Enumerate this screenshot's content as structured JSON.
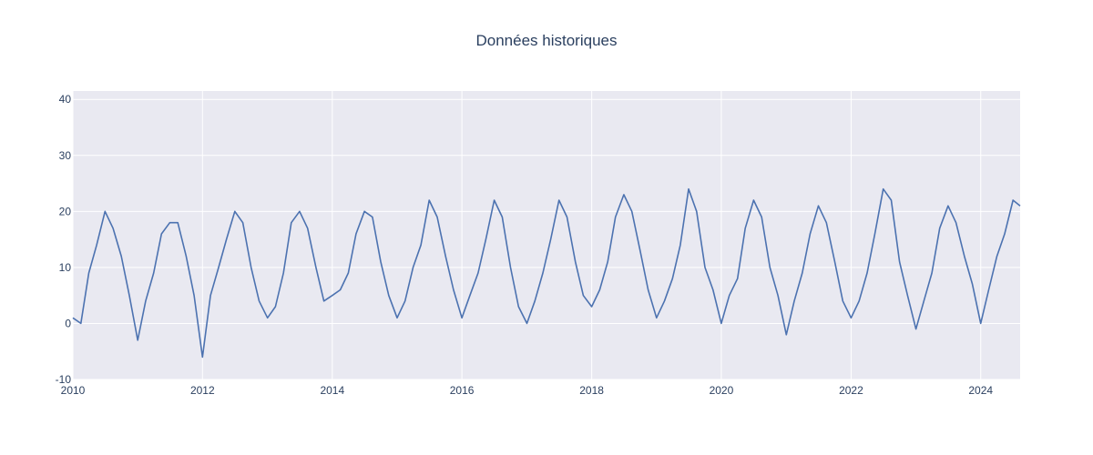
{
  "chart_data": {
    "type": "line",
    "title": "Données historiques",
    "xlabel": "",
    "ylabel": "",
    "xlim": [
      "2010-01-01",
      "2024-08-10"
    ],
    "ylim": [
      -10,
      41.5
    ],
    "x_ticks": [
      "2010",
      "2012",
      "2014",
      "2016",
      "2018",
      "2020",
      "2022",
      "2024"
    ],
    "y_ticks": [
      -10,
      0,
      10,
      20,
      30,
      40
    ],
    "grid": true,
    "legend": "none",
    "colors": {
      "plot_background": "#e9e9f1",
      "grid": "#ffffff",
      "series": "#4c72b0"
    },
    "series": [
      {
        "x": [
          "2010-01-01",
          "2010-02-15",
          "2010-04-01",
          "2010-05-15",
          "2010-07-01",
          "2010-08-15",
          "2010-10-01",
          "2010-11-15",
          "2011-01-01",
          "2011-02-15",
          "2011-04-01",
          "2011-05-15",
          "2011-07-01",
          "2011-08-15",
          "2011-10-01",
          "2011-11-15",
          "2012-01-01",
          "2012-02-15",
          "2012-04-01",
          "2012-05-15",
          "2012-07-01",
          "2012-08-15",
          "2012-10-01",
          "2012-11-15",
          "2013-01-01",
          "2013-02-15",
          "2013-04-01",
          "2013-05-15",
          "2013-07-01",
          "2013-08-15",
          "2013-10-01",
          "2013-11-15",
          "2014-01-01",
          "2014-02-15",
          "2014-04-01",
          "2014-05-15",
          "2014-07-01",
          "2014-08-15",
          "2014-10-01",
          "2014-11-15",
          "2015-01-01",
          "2015-02-15",
          "2015-04-01",
          "2015-05-15",
          "2015-07-01",
          "2015-08-15",
          "2015-10-01",
          "2015-11-15",
          "2016-01-01",
          "2016-02-15",
          "2016-04-01",
          "2016-05-15",
          "2016-07-01",
          "2016-08-15",
          "2016-10-01",
          "2016-11-15",
          "2017-01-01",
          "2017-02-15",
          "2017-04-01",
          "2017-05-15",
          "2017-07-01",
          "2017-08-15",
          "2017-10-01",
          "2017-11-15",
          "2018-01-01",
          "2018-02-15",
          "2018-04-01",
          "2018-05-15",
          "2018-07-01",
          "2018-08-15",
          "2018-10-01",
          "2018-11-15",
          "2019-01-01",
          "2019-02-15",
          "2019-04-01",
          "2019-05-15",
          "2019-07-01",
          "2019-08-15",
          "2019-10-01",
          "2019-11-15",
          "2020-01-01",
          "2020-02-15",
          "2020-04-01",
          "2020-05-15",
          "2020-07-01",
          "2020-08-15",
          "2020-10-01",
          "2020-11-15",
          "2021-01-01",
          "2021-02-15",
          "2021-04-01",
          "2021-05-15",
          "2021-07-01",
          "2021-08-15",
          "2021-10-01",
          "2021-11-15",
          "2022-01-01",
          "2022-02-15",
          "2022-04-01",
          "2022-05-15",
          "2022-07-01",
          "2022-08-15",
          "2022-10-01",
          "2022-11-15",
          "2023-01-01",
          "2023-02-15",
          "2023-04-01",
          "2023-05-15",
          "2023-07-01",
          "2023-08-15",
          "2023-10-01",
          "2023-11-15",
          "2024-01-01",
          "2024-02-15",
          "2024-04-01",
          "2024-05-15",
          "2024-07-01",
          "2024-08-10"
        ],
        "values": [
          1,
          0,
          9,
          14,
          20,
          17,
          12,
          5,
          -3,
          4,
          9,
          16,
          18,
          18,
          12,
          5,
          -6,
          5,
          10,
          15,
          20,
          18,
          10,
          4,
          1,
          3,
          9,
          18,
          20,
          17,
          10,
          4,
          5,
          6,
          9,
          16,
          20,
          19,
          11,
          5,
          1,
          4,
          10,
          14,
          22,
          19,
          12,
          6,
          1,
          5,
          9,
          15,
          22,
          19,
          10,
          3,
          0,
          4,
          9,
          15,
          22,
          19,
          11,
          5,
          3,
          6,
          11,
          19,
          23,
          20,
          13,
          6,
          1,
          4,
          8,
          14,
          24,
          20,
          10,
          6,
          0,
          5,
          8,
          17,
          22,
          19,
          10,
          5,
          -2,
          4,
          9,
          16,
          21,
          18,
          11,
          4,
          1,
          4,
          9,
          16,
          24,
          22,
          11,
          5,
          -1,
          4,
          9,
          17,
          21,
          18,
          12,
          7,
          0,
          6,
          12,
          16,
          22,
          21
        ]
      }
    ]
  }
}
